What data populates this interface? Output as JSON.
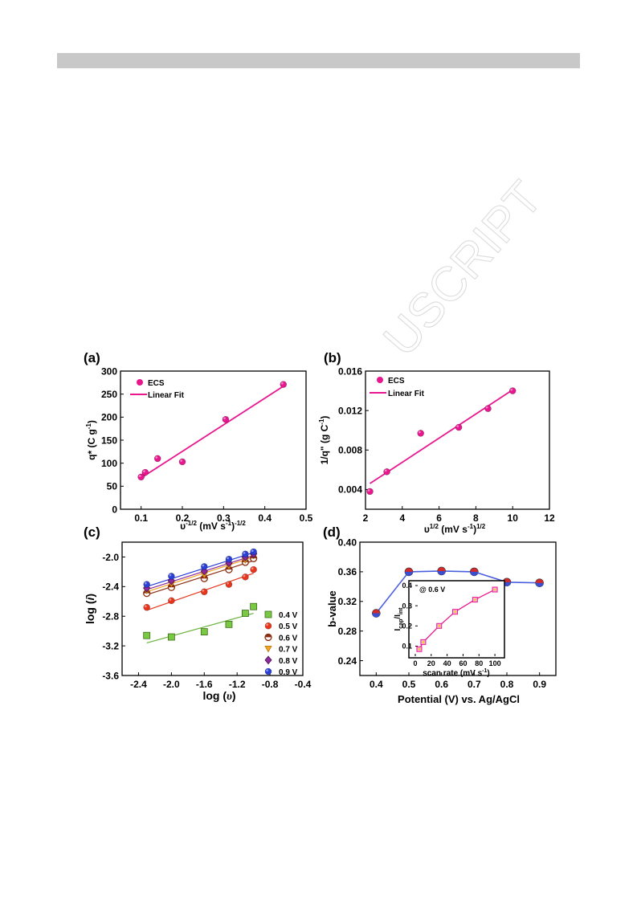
{
  "watermark_text": "ACCEPTED MANUSCRIPT",
  "watermark_visible": "USCRIPT",
  "colors": {
    "header_bar": "#c8c8c8",
    "magenta": "#e8178f",
    "fit_line": "#e8178f",
    "series_04": "#7ac943",
    "series_05": "#e8351b",
    "series_06": "#8b2e12",
    "series_07": "#f5a623",
    "series_08": "#8e2a9e",
    "series_09": "#2a3fd6",
    "b_line": "#4a5fe0",
    "b_marker": "#d42a2a"
  },
  "panels": {
    "a": {
      "label": "(a)"
    },
    "b": {
      "label": "(b)"
    },
    "c": {
      "label": "(c)"
    },
    "d": {
      "label": "(d)"
    }
  },
  "chart_data": [
    {
      "id": "a",
      "type": "scatter",
      "xlabel": "υ^-1/2 (mV s^-1)^-1/2",
      "xlabel_main": "υ",
      "xlabel_sup1": "-1/2",
      "xlabel_mid": " (mV s",
      "xlabel_sup2": "-1",
      "xlabel_end": ")",
      "xlabel_sup3": "-1/2",
      "ylabel": "q* (C g^-1)",
      "ylabel_main": "q* (C g",
      "ylabel_sup": "-1",
      "ylabel_end": ")",
      "xlim": [
        0.05,
        0.5
      ],
      "ylim": [
        0,
        300
      ],
      "xticks": [
        "0.1",
        "0.2",
        "0.3",
        "0.4",
        "0.5"
      ],
      "xtick_values": [
        0.1,
        0.2,
        0.3,
        0.4,
        0.5
      ],
      "yticks": [
        "0",
        "50",
        "100",
        "150",
        "200",
        "250",
        "300"
      ],
      "ytick_values": [
        0,
        50,
        100,
        150,
        200,
        250,
        300
      ],
      "legend": [
        "ECS",
        "Linear Fit"
      ],
      "series": [
        {
          "name": "ECS",
          "x": [
            0.1,
            0.11,
            0.14,
            0.2,
            0.305,
            0.445
          ],
          "y": [
            70,
            80,
            110,
            103,
            195,
            271
          ]
        }
      ],
      "fit": {
        "name": "Linear Fit",
        "x": [
          0.1,
          0.445
        ],
        "y": [
          68,
          267
        ]
      }
    },
    {
      "id": "b",
      "type": "scatter",
      "xlabel": "υ^1/2 (mV s^-1)^1/2",
      "xlabel_main": "υ",
      "xlabel_sup1": "1/2",
      "xlabel_mid": " (mV s",
      "xlabel_sup2": "-1",
      "xlabel_end": ")",
      "xlabel_sup3": "1/2",
      "ylabel": "1/q\" (g C^-1)",
      "ylabel_main": "1/q\" (g C",
      "ylabel_sup": "-1",
      "ylabel_end": ")",
      "xlim": [
        2,
        12
      ],
      "ylim": [
        0.002,
        0.016
      ],
      "xticks": [
        "2",
        "4",
        "6",
        "8",
        "10",
        "12"
      ],
      "xtick_values": [
        2,
        4,
        6,
        8,
        10,
        12
      ],
      "yticks": [
        "0.004",
        "0.008",
        "0.012",
        "0.016"
      ],
      "ytick_values": [
        0.004,
        0.008,
        0.012,
        0.016
      ],
      "legend": [
        "ECS",
        "Linear Fit"
      ],
      "series": [
        {
          "name": "ECS",
          "x": [
            2.24,
            3.16,
            5.0,
            7.07,
            8.66,
            10.0
          ],
          "y": [
            0.0038,
            0.0058,
            0.0097,
            0.0103,
            0.0122,
            0.014
          ]
        }
      ],
      "fit": {
        "name": "Linear Fit",
        "x": [
          2.24,
          10.0
        ],
        "y": [
          0.0046,
          0.0141
        ]
      }
    },
    {
      "id": "c",
      "type": "scatter",
      "xlabel": "log (υ)",
      "xlabel_prefix": "log (",
      "xlabel_var": "υ",
      "xlabel_suffix": ")",
      "ylabel": "log (i)",
      "ylabel_prefix": "log (",
      "ylabel_var": "i",
      "ylabel_suffix": ")",
      "xlim": [
        -2.6,
        -0.4
      ],
      "ylim": [
        -3.6,
        -1.8
      ],
      "xticks": [
        "-2.4",
        "-2.0",
        "-1.6",
        "-1.2",
        "-0.8",
        "-0.4"
      ],
      "xtick_values": [
        -2.4,
        -2.0,
        -1.6,
        -1.2,
        -0.8,
        -0.4
      ],
      "yticks": [
        "-2.0",
        "-2.4",
        "-2.8",
        "-3.2",
        "-3.6"
      ],
      "ytick_values": [
        -2.0,
        -2.4,
        -2.8,
        -3.2,
        -3.6
      ],
      "x": [
        -2.3,
        -2.0,
        -1.6,
        -1.3,
        -1.1,
        -1.0
      ],
      "series": [
        {
          "name": "0.4 V",
          "y": [
            -3.06,
            -3.08,
            -3.01,
            -2.91,
            -2.76,
            -2.67
          ],
          "fit": [
            -3.16,
            -2.76
          ]
        },
        {
          "name": "0.5 V",
          "y": [
            -2.68,
            -2.59,
            -2.47,
            -2.37,
            -2.27,
            -2.17
          ],
          "fit": [
            -2.72,
            -2.22
          ]
        },
        {
          "name": "0.6 V",
          "y": [
            -2.49,
            -2.41,
            -2.29,
            -2.17,
            -2.07,
            -2.02
          ],
          "fit": [
            -2.51,
            -2.05
          ]
        },
        {
          "name": "0.7 V",
          "y": [
            -2.45,
            -2.36,
            -2.24,
            -2.12,
            -2.04,
            -1.98
          ],
          "fit": [
            -2.47,
            -2.0
          ]
        },
        {
          "name": "0.8 V",
          "y": [
            -2.42,
            -2.32,
            -2.19,
            -2.08,
            -2.0,
            -1.96
          ],
          "fit": [
            -2.44,
            -1.98
          ]
        },
        {
          "name": "0.9 V",
          "y": [
            -2.37,
            -2.26,
            -2.13,
            -2.03,
            -1.96,
            -1.93
          ],
          "fit": [
            -2.4,
            -1.94
          ]
        }
      ]
    },
    {
      "id": "d",
      "type": "line",
      "xlabel": "Potential (V) vs. Ag/AgCl",
      "ylabel": "b-value",
      "xlim": [
        0.35,
        0.95
      ],
      "ylim": [
        0.22,
        0.4
      ],
      "xticks": [
        "0.4",
        "0.5",
        "0.6",
        "0.7",
        "0.8",
        "0.9"
      ],
      "xtick_values": [
        0.4,
        0.5,
        0.6,
        0.7,
        0.8,
        0.9
      ],
      "yticks": [
        "0.24",
        "0.28",
        "0.32",
        "0.36",
        "0.40"
      ],
      "ytick_values": [
        0.24,
        0.28,
        0.32,
        0.36,
        0.4
      ],
      "series": [
        {
          "x": [
            0.4,
            0.5,
            0.6,
            0.7,
            0.8,
            0.9
          ],
          "y": [
            0.304,
            0.36,
            0.361,
            0.36,
            0.346,
            0.345
          ]
        }
      ],
      "inset": {
        "type": "line",
        "annotation": "@ 0.6 V",
        "xlabel": "scan rate (mV s^-1)",
        "xlabel_main": "scan rate (mV s",
        "xlabel_sup": "-1",
        "xlabel_end": ")",
        "ylabel": "Icap/Iint",
        "ylabel_I1": "I",
        "ylabel_sub1": "cap",
        "ylabel_slash": "/I",
        "ylabel_sub2": "int",
        "xlim": [
          0,
          110
        ],
        "ylim": [
          0.05,
          0.4
        ],
        "xticks": [
          "0",
          "20",
          "40",
          "60",
          "80",
          "100"
        ],
        "xtick_values": [
          0,
          20,
          40,
          60,
          80,
          100
        ],
        "yticks": [
          "0.1",
          "0.2",
          "0.3",
          "0.4"
        ],
        "ytick_values": [
          0.1,
          0.2,
          0.3,
          0.4
        ],
        "series": [
          {
            "x": [
              5,
              10,
              30,
              50,
              75,
              100
            ],
            "y": [
              0.085,
              0.12,
              0.2,
              0.27,
              0.33,
              0.38
            ]
          }
        ]
      }
    }
  ]
}
